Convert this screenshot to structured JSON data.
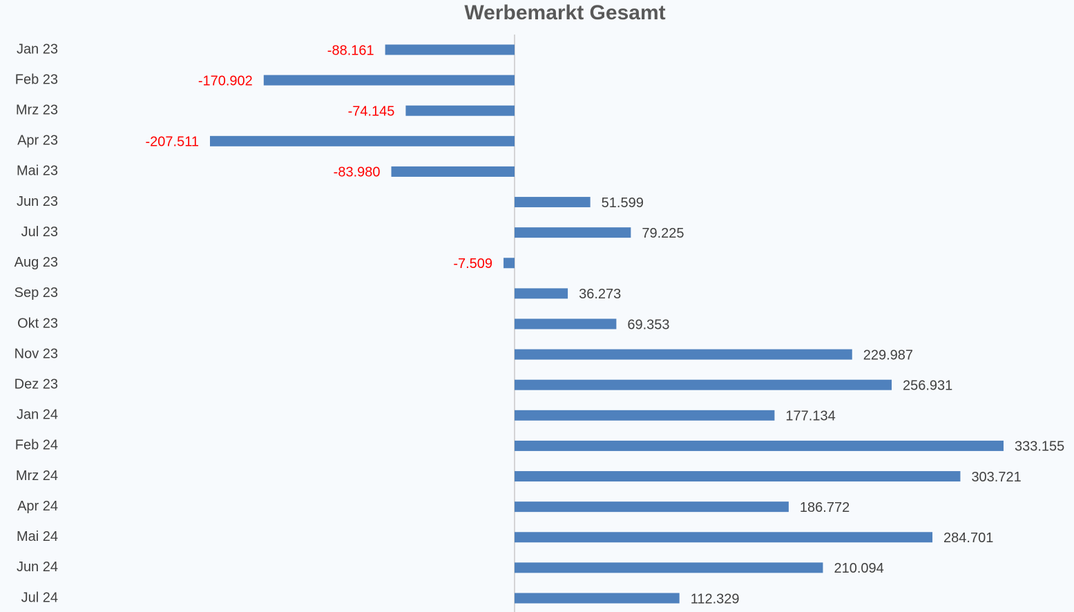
{
  "chart_data": {
    "type": "barh",
    "title": "Werbemarkt Gesamt",
    "categories": [
      "Jan 23",
      "Feb 23",
      "Mrz 23",
      "Apr 23",
      "Mai 23",
      "Jun 23",
      "Jul 23",
      "Aug 23",
      "Sep 23",
      "Okt 23",
      "Nov 23",
      "Dez 23",
      "Jan 24",
      "Feb 24",
      "Mrz 24",
      "Apr 24",
      "Mai 24",
      "Jun 24",
      "Jul 24"
    ],
    "values": [
      -88161,
      -170902,
      -74145,
      -207511,
      -83980,
      51599,
      79225,
      -7509,
      36273,
      69353,
      229987,
      256931,
      177134,
      333155,
      303721,
      186772,
      284701,
      210094,
      112329
    ],
    "value_labels": [
      "-88.161",
      "-170.902",
      "-74.145",
      "-207.511",
      "-83.980",
      "51.599",
      "79.225",
      "-7.509",
      "36.273",
      "69.353",
      "229.987",
      "256.931",
      "177.134",
      "333.155",
      "303.721",
      "186.772",
      "284.701",
      "210.094",
      "112.329"
    ],
    "color": "#4f81bd",
    "label_color": "#404040",
    "negative_label_color": "#ff0000"
  }
}
